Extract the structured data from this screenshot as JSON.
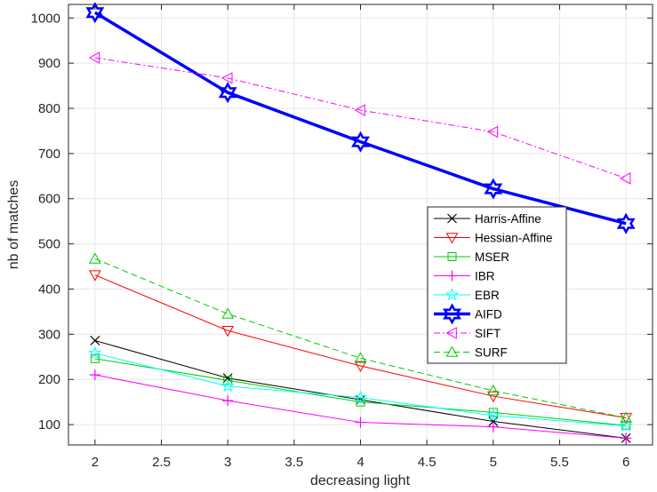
{
  "chart_data": {
    "type": "line",
    "title": "",
    "xlabel": "decreasing light",
    "ylabel": "nb of matches",
    "xlim": [
      1.8,
      6.2
    ],
    "ylim": [
      55,
      1030
    ],
    "x": [
      2,
      3,
      4,
      5,
      6
    ],
    "xticks": [
      2,
      2.5,
      3,
      3.5,
      4,
      4.5,
      5,
      5.5,
      6
    ],
    "xtick_labels": [
      "2",
      "2.5",
      "3",
      "3.5",
      "4",
      "4.5",
      "5",
      "5.5",
      "6"
    ],
    "yticks": [
      100,
      200,
      300,
      400,
      500,
      600,
      700,
      800,
      900,
      1000
    ],
    "ytick_labels": [
      "100",
      "200",
      "300",
      "400",
      "500",
      "600",
      "700",
      "800",
      "900",
      "1000"
    ],
    "grid": true,
    "legend_position": "right",
    "series": [
      {
        "name": "Harris-Affine",
        "values": [
          286,
          203,
          155,
          107,
          70
        ],
        "color": "#000000",
        "marker": "x",
        "dash": "solid",
        "width": 1
      },
      {
        "name": "Hessian-Affine",
        "values": [
          431,
          308,
          230,
          163,
          115
        ],
        "color": "#ff0000",
        "marker": "triangle-down",
        "dash": "solid",
        "width": 1
      },
      {
        "name": "MSER",
        "values": [
          246,
          198,
          150,
          127,
          98
        ],
        "color": "#00cc00",
        "marker": "square",
        "dash": "solid",
        "width": 1
      },
      {
        "name": "IBR",
        "values": [
          210,
          153,
          105,
          95,
          70
        ],
        "color": "#ff00ff",
        "marker": "plus",
        "dash": "solid",
        "width": 1
      },
      {
        "name": "EBR",
        "values": [
          258,
          185,
          160,
          120,
          97
        ],
        "color": "#00ffff",
        "marker": "star",
        "dash": "solid",
        "width": 1
      },
      {
        "name": "AIFD",
        "values": [
          1012,
          835,
          726,
          622,
          545
        ],
        "color": "#0000ff",
        "marker": "hexagram",
        "dash": "solid",
        "width": 3.5
      },
      {
        "name": "SIFT",
        "values": [
          912,
          867,
          796,
          748,
          645
        ],
        "color": "#ff00ff",
        "marker": "triangle-left",
        "dash": "dashdot",
        "width": 1
      },
      {
        "name": "SURF",
        "values": [
          467,
          345,
          247,
          175,
          115
        ],
        "color": "#00cc00",
        "marker": "triangle-up",
        "dash": "dashed",
        "width": 1
      }
    ]
  }
}
